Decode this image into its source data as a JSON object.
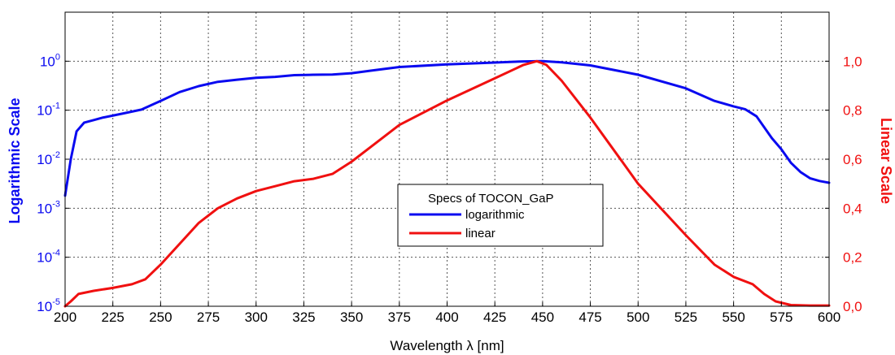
{
  "chart_data": {
    "type": "line",
    "xlabel": "Wavelength λ [nm]",
    "ylabel_left": "Logarithmic Scale",
    "ylabel_right": "Linear Scale",
    "xlim": [
      200,
      600
    ],
    "x_ticks": [
      200,
      225,
      250,
      275,
      300,
      325,
      350,
      375,
      400,
      425,
      450,
      475,
      500,
      525,
      550,
      575,
      600
    ],
    "y_left": {
      "scale": "log",
      "lim": [
        1e-05,
        10
      ],
      "ticks": [
        {
          "value": 1e-05,
          "base": "10",
          "exp": "-5"
        },
        {
          "value": 0.0001,
          "base": "10",
          "exp": "-4"
        },
        {
          "value": 0.001,
          "base": "10",
          "exp": "-3"
        },
        {
          "value": 0.01,
          "base": "10",
          "exp": "-2"
        },
        {
          "value": 0.1,
          "base": "10",
          "exp": "-1"
        },
        {
          "value": 1,
          "base": "10",
          "exp": "0"
        }
      ]
    },
    "y_right": {
      "scale": "linear",
      "lim": [
        0,
        1.2
      ],
      "ticks": [
        "0,0",
        "0,2",
        "0,4",
        "0,6",
        "0,8",
        "1,0"
      ]
    },
    "grid": true,
    "legend": {
      "title": "Specs of TOCON_GaP",
      "placement": "center",
      "entries": [
        {
          "label": "logarithmic",
          "color": "#0a0af0"
        },
        {
          "label": "linear",
          "color": "#f01010"
        }
      ]
    },
    "series": [
      {
        "name": "logarithmic",
        "axis": "left",
        "color": "#0a0af0",
        "points": [
          [
            200,
            0.0018
          ],
          [
            203,
            0.01
          ],
          [
            206,
            0.037
          ],
          [
            210,
            0.056
          ],
          [
            215,
            0.063
          ],
          [
            220,
            0.071
          ],
          [
            230,
            0.085
          ],
          [
            240,
            0.103
          ],
          [
            250,
            0.155
          ],
          [
            260,
            0.235
          ],
          [
            270,
            0.31
          ],
          [
            280,
            0.38
          ],
          [
            290,
            0.42
          ],
          [
            300,
            0.46
          ],
          [
            310,
            0.48
          ],
          [
            320,
            0.52
          ],
          [
            330,
            0.53
          ],
          [
            340,
            0.535
          ],
          [
            350,
            0.57
          ],
          [
            360,
            0.64
          ],
          [
            375,
            0.76
          ],
          [
            400,
            0.86
          ],
          [
            425,
            0.94
          ],
          [
            440,
            0.99
          ],
          [
            450,
            1.0
          ],
          [
            460,
            0.95
          ],
          [
            475,
            0.82
          ],
          [
            500,
            0.53
          ],
          [
            525,
            0.28
          ],
          [
            540,
            0.155
          ],
          [
            550,
            0.12
          ],
          [
            556,
            0.105
          ],
          [
            562,
            0.075
          ],
          [
            570,
            0.027
          ],
          [
            575,
            0.016
          ],
          [
            580,
            0.0085
          ],
          [
            585,
            0.0055
          ],
          [
            590,
            0.0041
          ],
          [
            595,
            0.0036
          ],
          [
            600,
            0.0033
          ]
        ]
      },
      {
        "name": "linear",
        "axis": "right",
        "color": "#f01010",
        "points": [
          [
            200,
            0.0
          ],
          [
            203,
            0.02
          ],
          [
            207,
            0.05
          ],
          [
            215,
            0.063
          ],
          [
            225,
            0.075
          ],
          [
            235,
            0.09
          ],
          [
            242,
            0.11
          ],
          [
            250,
            0.17
          ],
          [
            260,
            0.255
          ],
          [
            270,
            0.34
          ],
          [
            280,
            0.4
          ],
          [
            290,
            0.44
          ],
          [
            300,
            0.47
          ],
          [
            310,
            0.49
          ],
          [
            320,
            0.51
          ],
          [
            330,
            0.52
          ],
          [
            340,
            0.54
          ],
          [
            350,
            0.59
          ],
          [
            360,
            0.65
          ],
          [
            375,
            0.74
          ],
          [
            400,
            0.84
          ],
          [
            425,
            0.93
          ],
          [
            440,
            0.985
          ],
          [
            447,
            1.0
          ],
          [
            452,
            0.985
          ],
          [
            460,
            0.92
          ],
          [
            475,
            0.77
          ],
          [
            500,
            0.5
          ],
          [
            525,
            0.29
          ],
          [
            540,
            0.17
          ],
          [
            550,
            0.12
          ],
          [
            560,
            0.09
          ],
          [
            566,
            0.05
          ],
          [
            572,
            0.02
          ],
          [
            580,
            0.005
          ],
          [
            590,
            0.003
          ],
          [
            600,
            0.003
          ]
        ]
      }
    ]
  }
}
